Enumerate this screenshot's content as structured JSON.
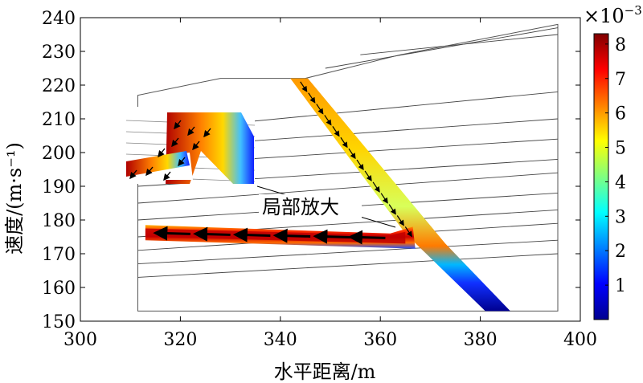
{
  "chart_data": {
    "type": "heatmap",
    "xlabel": "水平距离/m",
    "ylabel": "速度/(m·s⁻¹)",
    "xlim": [
      300,
      400
    ],
    "ylim": [
      150,
      240
    ],
    "x_ticks": [
      300,
      320,
      340,
      360,
      380,
      400
    ],
    "y_ticks": [
      150,
      160,
      170,
      180,
      190,
      200,
      210,
      220,
      230,
      240
    ],
    "annotation": "局部放大",
    "colorbar": {
      "multiplier": "×10",
      "exponent": "−3",
      "range": [
        0,
        8.3
      ],
      "ticks": [
        1,
        2,
        3,
        4,
        5,
        6,
        7,
        8
      ],
      "colormap": [
        "#00008f",
        "#0000ff",
        "#0080ff",
        "#00ffff",
        "#80ff80",
        "#ffff00",
        "#ff8000",
        "#ff0000",
        "#800000"
      ]
    },
    "slope_outline": [
      [
        311.5,
        153
      ],
      [
        311.5,
        217
      ],
      [
        328,
        222
      ],
      [
        340,
        222
      ],
      [
        345,
        222
      ],
      [
        364,
        229
      ],
      [
        395.5,
        238
      ],
      [
        395.5,
        153
      ]
    ],
    "strata": [
      [
        [
          311.5,
          206
        ],
        [
          395.5,
          218
        ]
      ],
      [
        [
          311.5,
          201
        ],
        [
          395.5,
          210
        ]
      ],
      [
        [
          311.5,
          196
        ],
        [
          395.5,
          204
        ]
      ],
      [
        [
          311.5,
          190
        ],
        [
          395.5,
          198
        ]
      ],
      [
        [
          311.5,
          185
        ],
        [
          395.5,
          194
        ]
      ],
      [
        [
          311.5,
          180
        ],
        [
          395.5,
          188
        ]
      ],
      [
        [
          311.5,
          175
        ],
        [
          395.5,
          183
        ]
      ],
      [
        [
          311.5,
          171
        ],
        [
          395.5,
          179
        ]
      ],
      [
        [
          311.5,
          167
        ],
        [
          395.5,
          174
        ]
      ],
      [
        [
          311.5,
          163
        ],
        [
          395.5,
          170
        ]
      ],
      [
        [
          349,
          225
        ],
        [
          395.5,
          237
        ]
      ],
      [
        [
          356,
          229
        ],
        [
          395.5,
          235
        ]
      ]
    ],
    "fracture_zone": [
      [
        342,
        222
      ],
      [
        345.5,
        222
      ],
      [
        373,
        173
      ],
      [
        386,
        153
      ],
      [
        381,
        153
      ],
      [
        365,
        176
      ]
    ],
    "channel": [
      [
        313,
        178.5
      ],
      [
        362,
        176
      ],
      [
        366.5,
        178
      ],
      [
        367,
        171.5
      ],
      [
        313,
        174
      ]
    ],
    "high_zone": [
      [
        313,
        177.5
      ],
      [
        362,
        175.5
      ],
      [
        365,
        176.5
      ],
      [
        365,
        173
      ],
      [
        313,
        175
      ]
    ]
  }
}
